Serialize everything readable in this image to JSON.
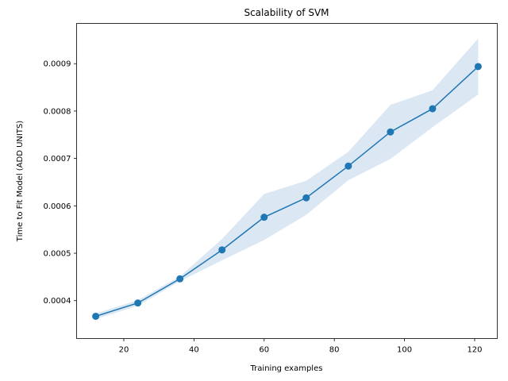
{
  "chart_data": {
    "type": "line",
    "title": "Scalability of SVM",
    "xlabel": "Training examples",
    "ylabel": "Time to Fit Model (ADD UNITS)",
    "xlim": [
      6.55,
      126.45
    ],
    "ylim": [
      0.00032,
      0.000985
    ],
    "xticks": [
      20,
      40,
      60,
      80,
      100,
      120
    ],
    "xtick_labels": [
      "20",
      "40",
      "60",
      "80",
      "100",
      "120"
    ],
    "yticks": [
      0.0004,
      0.0005,
      0.0006,
      0.0007,
      0.0008,
      0.0009
    ],
    "ytick_labels": [
      "0.0004",
      "0.0005",
      "0.0006",
      "0.0007",
      "0.0008",
      "0.0009"
    ],
    "grid": false,
    "legend": "none",
    "colors": {
      "line": "#1f77b4",
      "band": "#dbe7f3"
    },
    "series": [
      {
        "x": [
          12,
          24,
          36,
          48,
          60,
          72,
          84,
          96,
          108,
          121
        ],
        "values": [
          0.000367,
          0.000395,
          0.000446,
          0.000507,
          0.000576,
          0.000617,
          0.000684,
          0.000756,
          0.000805,
          0.000894
        ],
        "upper": [
          0.000373,
          0.000401,
          0.000451,
          0.00053,
          0.000625,
          0.000653,
          0.000714,
          0.000813,
          0.000844,
          0.000953
        ],
        "lower": [
          0.000361,
          0.000389,
          0.000441,
          0.000485,
          0.000528,
          0.000581,
          0.000654,
          0.000699,
          0.000766,
          0.000835
        ]
      }
    ]
  }
}
